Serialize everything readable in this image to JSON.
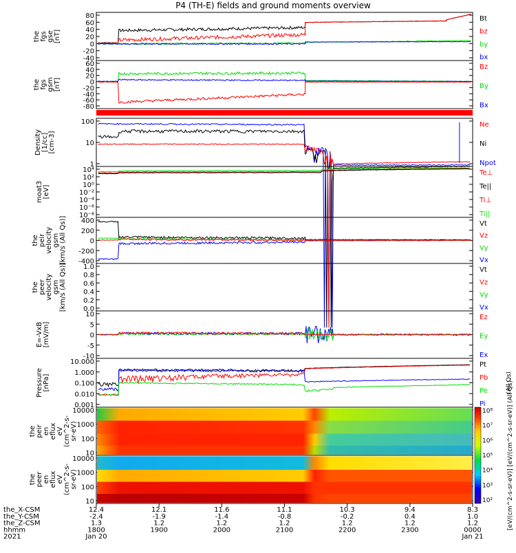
{
  "title": "P4 (TH-E) fields and ground moments overview",
  "colors": {
    "black": "#000000",
    "red": "#ff0000",
    "green": "#00dd00",
    "blue": "#0000ff"
  },
  "panels": [
    {
      "id": "p1",
      "ylabel": [
        "the",
        "fgs",
        "gse",
        "[nT]"
      ],
      "ticks": [
        "80",
        "60",
        "40",
        "20",
        "0",
        "-20",
        "-40"
      ],
      "legend": [
        {
          "t": "Bt",
          "c": "black"
        },
        {
          "t": "bz",
          "c": "red"
        },
        {
          "t": "by",
          "c": "green"
        },
        {
          "t": "bx",
          "c": "blue"
        }
      ]
    },
    {
      "id": "p2",
      "ylabel": [
        "the",
        "fgs",
        "gsm",
        "[nT]"
      ],
      "ticks": [
        "60",
        "40",
        "20",
        "0",
        "-20",
        "-40",
        "-60",
        "-80"
      ],
      "legend": [
        {
          "t": "Bz",
          "c": "red"
        },
        {
          "t": "By",
          "c": "green"
        },
        {
          "t": "Bx",
          "c": "blue"
        }
      ]
    },
    {
      "id": "p3",
      "ylabel": [
        "Density",
        "[1/cc]",
        "[cm-3]"
      ],
      "ticks": [
        "100",
        "10",
        "1"
      ],
      "legend": [
        {
          "t": "Ne",
          "c": "red"
        },
        {
          "t": "Ni",
          "c": "black"
        },
        {
          "t": "Npot",
          "c": "blue"
        }
      ]
    },
    {
      "id": "p4",
      "ylabel": [
        "moat3",
        "[eV]"
      ],
      "ticks": [
        "10⁴",
        "10²",
        "10⁰",
        "10⁻²",
        "10⁻⁴",
        "10⁻⁶",
        "10⁻⁸"
      ],
      "legend": [
        {
          "t": "Te⊥",
          "c": "red"
        },
        {
          "t": "Te||",
          "c": "black"
        },
        {
          "t": "Ti⊥",
          "c": "red"
        },
        {
          "t": "Ti||",
          "c": "green"
        }
      ]
    },
    {
      "id": "p5",
      "ylabel": [
        "the",
        "peir",
        "velocity",
        "gsm",
        "[km/s (All Qs)]"
      ],
      "ticks": [
        "400",
        "200",
        "0",
        "-200",
        "-400"
      ],
      "legend": [
        {
          "t": "Vt",
          "c": "black"
        },
        {
          "t": "Vz",
          "c": "red"
        },
        {
          "t": "Vy",
          "c": "green"
        },
        {
          "t": "Vx",
          "c": "blue"
        }
      ]
    },
    {
      "id": "p6",
      "ylabel": [
        "the",
        "peer",
        "velocity",
        "gsm",
        "[km/s (All Qs)]"
      ],
      "ticks": [
        "1.0",
        "0.8",
        "0.6",
        "0.4",
        "0.2",
        "0.0"
      ],
      "legend": [
        {
          "t": "Vt",
          "c": "black"
        },
        {
          "t": "Vz",
          "c": "red"
        },
        {
          "t": "Vy",
          "c": "green"
        },
        {
          "t": "Vx",
          "c": "blue"
        }
      ]
    },
    {
      "id": "p7",
      "ylabel": [
        "E=-VxB",
        "[mV/m]"
      ],
      "ticks": [
        "10",
        "5",
        "0",
        "-5",
        "-10"
      ],
      "legend": [
        {
          "t": "Ez",
          "c": "red"
        },
        {
          "t": "Ey",
          "c": "green"
        },
        {
          "t": "Ex",
          "c": "blue"
        }
      ]
    },
    {
      "id": "p8",
      "ylabel": [
        "Pressure",
        "[nPa]"
      ],
      "ticks": [
        "10.000",
        "1.000",
        "0.100",
        "0.010",
        "0.001"
      ],
      "legend": [
        {
          "t": "Pt",
          "c": "black"
        },
        {
          "t": "Pb",
          "c": "red"
        },
        {
          "t": "Pe",
          "c": "green"
        },
        {
          "t": "Pi",
          "c": "blue"
        }
      ],
      "note": "(All Qs)"
    },
    {
      "id": "p9",
      "ylabel": [
        "the",
        "peir",
        "en",
        "eflux",
        "eV",
        "(cm^2-s-",
        "sr-eV)"
      ],
      "ticks": [
        "10000",
        "1000",
        "100",
        "10"
      ]
    },
    {
      "id": "p10",
      "ylabel": [
        "the",
        "peer",
        "en",
        "eflux",
        "eV",
        "(cm^2-s-",
        "sr-eV)"
      ],
      "ticks": [
        "10000",
        "1000",
        "100",
        "10"
      ]
    }
  ],
  "colorbar": {
    "ticks": [
      "10⁸",
      "10⁷",
      "10⁶",
      "10⁵",
      "10⁴",
      "10³",
      "10²"
    ],
    "label": "[eV/(cm^2-s-sr-eV)]  [eV/(cm^2-s-sr-eV)]  (All Qs)"
  },
  "xaxis": {
    "rows": [
      {
        "label": "the_X-CSM",
        "values": [
          "12.4",
          "12.1",
          "11.6",
          "11.1",
          "10.3",
          "9.4",
          "8.3"
        ]
      },
      {
        "label": "the_Y-CSM",
        "values": [
          "-2.4",
          "-1.9",
          "-1.4",
          "-0.8",
          "-0.2",
          "0.4",
          "1.0"
        ]
      },
      {
        "label": "the_Z-CSM",
        "values": [
          "1.3",
          "1.2",
          "1.2",
          "1.2",
          "1.2",
          "1.2",
          "1.2"
        ]
      },
      {
        "label": "hhmm",
        "values": [
          "1800",
          "1900",
          "2000",
          "2100",
          "2200",
          "2300",
          "0000"
        ]
      },
      {
        "label": "2021",
        "values": [
          "Jan 20",
          "",
          "",
          "",
          "",
          "",
          "Jan 21"
        ]
      }
    ]
  },
  "chart_data": {
    "type": "line",
    "title": "P4 (TH-E) fields and ground moments overview",
    "x": [
      "1800",
      "1900",
      "2000",
      "2100",
      "2200",
      "2300",
      "0000"
    ],
    "series": [
      {
        "name": "Bt",
        "values": [
          5,
          40,
          35,
          40,
          58,
          60,
          80
        ]
      },
      {
        "name": "bz",
        "values": [
          2,
          15,
          18,
          22,
          60,
          62,
          80
        ]
      },
      {
        "name": "by",
        "values": [
          0,
          0,
          2,
          0,
          5,
          8,
          8
        ]
      },
      {
        "name": "bx",
        "values": [
          0,
          0,
          0,
          0,
          5,
          6,
          5
        ]
      },
      {
        "name": "Bz",
        "values": [
          0,
          -60,
          -50,
          -40,
          0,
          0,
          0
        ]
      },
      {
        "name": "By",
        "values": [
          0,
          25,
          25,
          25,
          5,
          5,
          0
        ]
      },
      {
        "name": "Bx",
        "values": [
          0,
          5,
          5,
          5,
          0,
          0,
          0
        ]
      },
      {
        "name": "Ni",
        "values": [
          10,
          40,
          40,
          40,
          0.4,
          0.4,
          0.5
        ]
      },
      {
        "name": "Ne",
        "values": [
          8,
          8,
          8,
          8,
          0.6,
          0.6,
          0.8
        ]
      },
      {
        "name": "Npot",
        "values": [
          100,
          100,
          90,
          90,
          0.5,
          0.4,
          0.5
        ]
      },
      {
        "name": "Vx",
        "values": [
          -350,
          -60,
          -50,
          -40,
          -10,
          0,
          0
        ]
      },
      {
        "name": "Vt",
        "values": [
          350,
          60,
          50,
          40,
          20,
          10,
          10
        ]
      },
      {
        "name": "Pt",
        "values": [
          0.08,
          1.2,
          0.8,
          1.0,
          1.5,
          2.0,
          3.0
        ]
      },
      {
        "name": "Pb",
        "values": [
          0.01,
          0.2,
          0.4,
          0.5,
          1.4,
          1.8,
          2.8
        ]
      },
      {
        "name": "Pe",
        "values": [
          0.01,
          0.1,
          0.07,
          0.07,
          0.02,
          0.04,
          0.07
        ]
      },
      {
        "name": "Pi",
        "values": [
          0.03,
          1.0,
          0.8,
          0.9,
          0.1,
          0.15,
          0.2
        ]
      }
    ]
  }
}
